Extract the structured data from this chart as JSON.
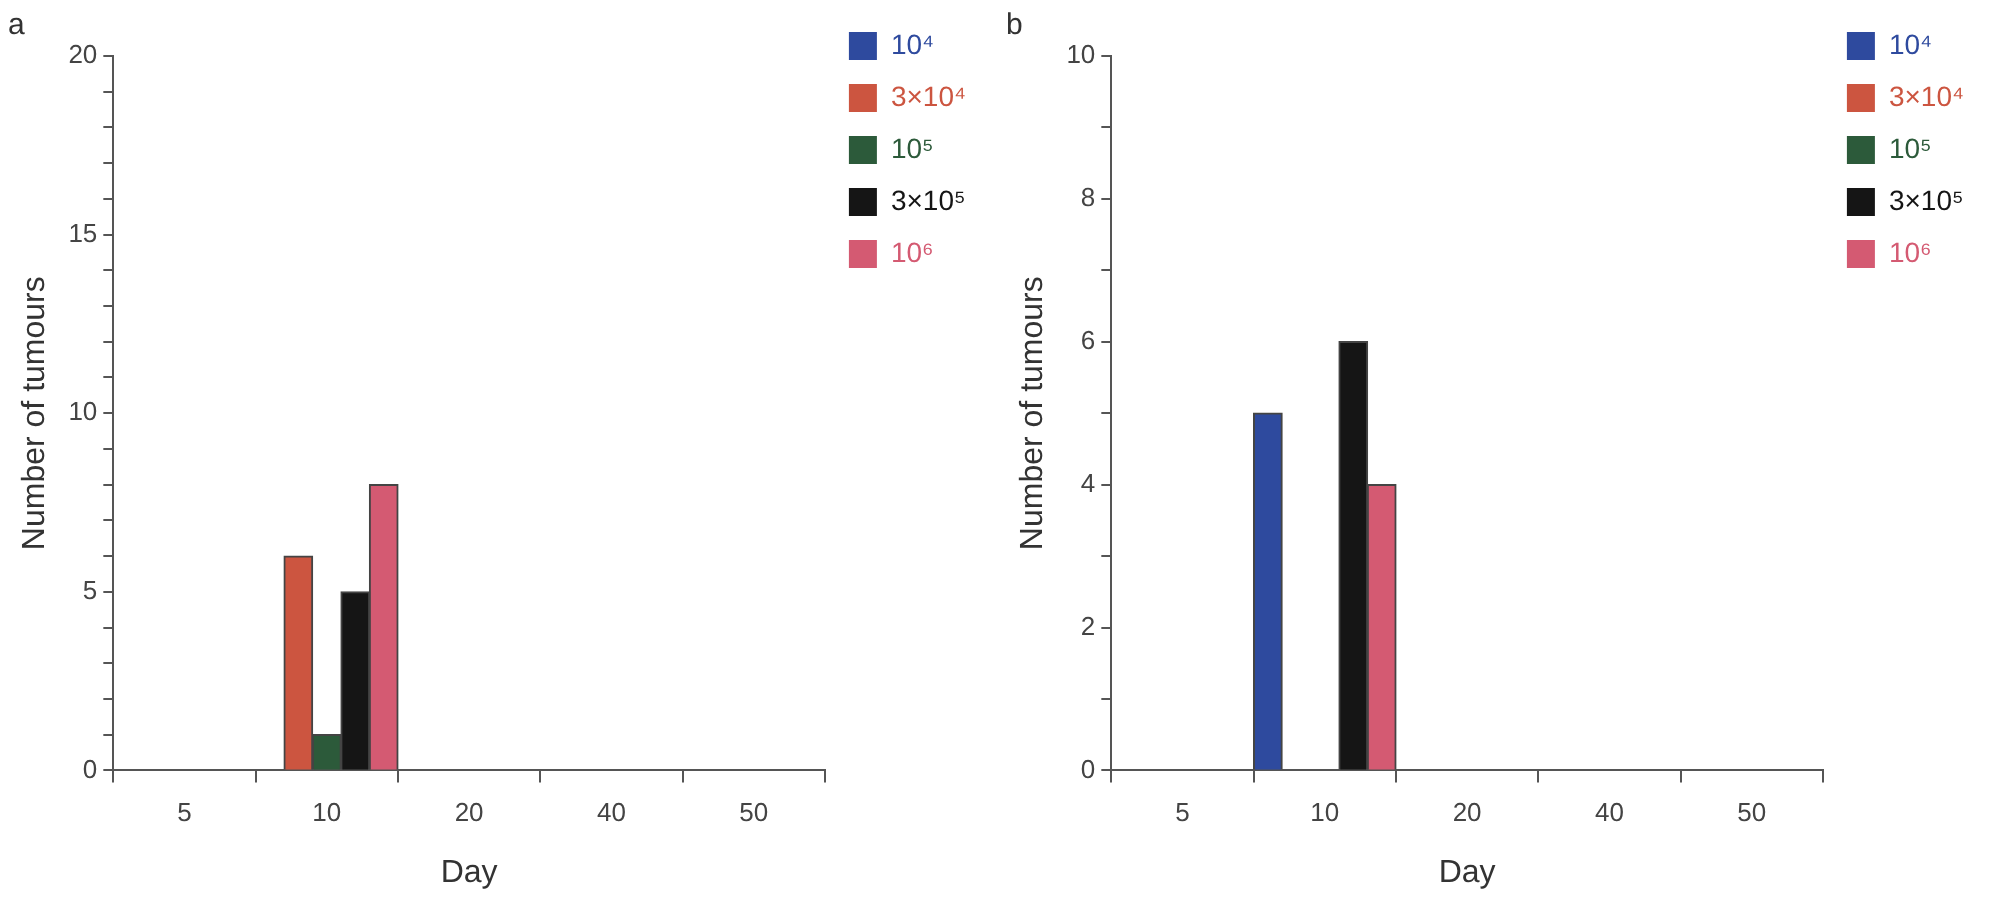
{
  "chart_data": [
    {
      "type": "bar",
      "title": "a",
      "xlabel": "Day",
      "ylabel": "Number of tumours",
      "categories": [
        "5",
        "10",
        "20",
        "40",
        "50"
      ],
      "series": [
        {
          "name": "10⁴",
          "color": "#2e4a9e",
          "values": [
            0,
            0,
            0,
            0,
            0
          ]
        },
        {
          "name": "3×10⁴",
          "color": "#cc5540",
          "values": [
            0,
            6,
            0,
            0,
            0
          ]
        },
        {
          "name": "10⁵",
          "color": "#2c5a3a",
          "values": [
            0,
            1,
            0,
            0,
            0
          ]
        },
        {
          "name": "3×10⁵",
          "color": "#151515",
          "values": [
            0,
            5,
            0,
            0,
            0
          ]
        },
        {
          "name": "10⁶",
          "color": "#d45a72",
          "values": [
            0,
            8,
            0,
            0,
            0
          ]
        }
      ],
      "ylim": [
        0,
        20
      ],
      "yticks": [
        0,
        {
          "value": 1,
          "label": null
        },
        {
          "value": 2,
          "label": null
        },
        {
          "value": 3,
          "label": null
        },
        {
          "value": 4,
          "label": null
        },
        5,
        {
          "value": 6,
          "label": null
        },
        {
          "value": 7,
          "label": null
        },
        {
          "value": 8,
          "label": null
        },
        {
          "value": 9,
          "label": null
        },
        10,
        {
          "value": 11,
          "label": null
        },
        {
          "value": 12,
          "label": null
        },
        {
          "value": 13,
          "label": null
        },
        {
          "value": 14,
          "label": null
        },
        15,
        {
          "value": 16,
          "label": null
        },
        {
          "value": 17,
          "label": null
        },
        {
          "value": 18,
          "label": null
        },
        {
          "value": 19,
          "label": null
        },
        20
      ],
      "grid": false,
      "legend": "right"
    },
    {
      "type": "bar",
      "title": "b",
      "xlabel": "Day",
      "ylabel": "Number of tumours",
      "categories": [
        "5",
        "10",
        "20",
        "40",
        "50"
      ],
      "series": [
        {
          "name": "10⁴",
          "color": "#2e4a9e",
          "values": [
            0,
            5,
            0,
            0,
            0
          ]
        },
        {
          "name": "3×10⁴",
          "color": "#cc5540",
          "values": [
            0,
            0,
            0,
            0,
            0
          ]
        },
        {
          "name": "10⁵",
          "color": "#2c5a3a",
          "values": [
            0,
            0,
            0,
            0,
            0
          ]
        },
        {
          "name": "3×10⁵",
          "color": "#151515",
          "values": [
            0,
            6,
            0,
            0,
            0
          ]
        },
        {
          "name": "10⁶",
          "color": "#d45a72",
          "values": [
            0,
            4,
            0,
            0,
            0
          ]
        }
      ],
      "ylim": [
        0,
        10
      ],
      "yticks": [
        0,
        {
          "value": 1,
          "label": null
        },
        2,
        {
          "value": 3,
          "label": null
        },
        4,
        {
          "value": 5,
          "label": null
        },
        6,
        {
          "value": 7,
          "label": null
        },
        8,
        {
          "value": 9,
          "label": null
        },
        10
      ],
      "grid": false,
      "legend": "right"
    }
  ]
}
